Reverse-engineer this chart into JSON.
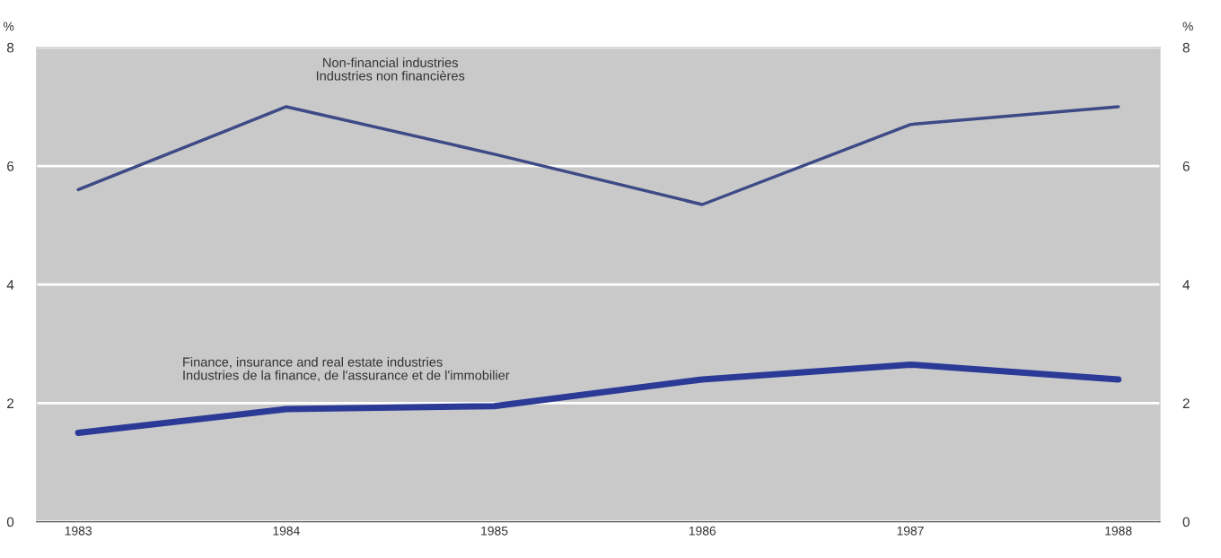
{
  "chart_data": {
    "type": "line",
    "categories": [
      "1983",
      "1984",
      "1985",
      "1986",
      "1987",
      "1988"
    ],
    "series": [
      {
        "name": "Non-financial industries\nIndustries non financières",
        "color": "#3d4a86",
        "values": [
          5.6,
          7.0,
          6.2,
          5.35,
          6.7,
          7.0
        ]
      },
      {
        "name": "Finance, insurance and real estate industries\nIndustries de la finance, de l'assurance et de l'immobilier",
        "color": "#2b3a96",
        "values": [
          1.5,
          1.9,
          1.95,
          2.4,
          2.65,
          2.4
        ]
      }
    ],
    "ylabel": "%",
    "y2label": "%",
    "ylim": [
      0,
      8
    ],
    "yticks": [
      0,
      2,
      4,
      6,
      8
    ],
    "y2lim": [
      0,
      8
    ],
    "y2ticks": [
      0,
      2,
      4,
      6,
      8
    ],
    "grid": "y",
    "legend": false,
    "marker": "none",
    "line_style": "solid"
  }
}
